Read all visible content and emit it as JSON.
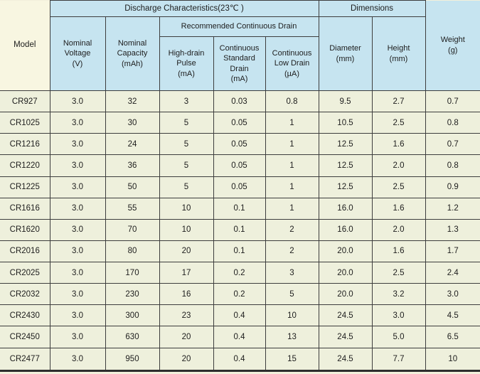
{
  "colors": {
    "header_blue": "#c6e4f0",
    "model_cream": "#f8f6e1",
    "cell_green": "#eef0dc",
    "border": "#3d3d3d",
    "text": "#1d1d1d",
    "page_bg": "#f2efdb"
  },
  "table": {
    "model_header": "Model",
    "groups": {
      "discharge": "Discharge Characteristics(23℃ )",
      "dimensions": "Dimensions",
      "recommended": "Recommended Continuous Drain"
    },
    "columns": {
      "nominal_voltage": "Nominal\nVoltage\n(V)",
      "nominal_capacity": "Nominal\nCapacity\n(mAh)",
      "high_drain_pulse": "High-drain\nPulse\n(mA)",
      "continuous_standard_drain": "Continuous\nStandard\nDrain\n(mA)",
      "continuous_low_drain": "Continuous\nLow Drain\n(µA)",
      "diameter": "Diameter\n(mm)",
      "height": "Height\n(mm)",
      "weight": "Weight\n(g)"
    },
    "rows": [
      [
        "CR927",
        "3.0",
        "32",
        "3",
        "0.03",
        "0.8",
        "9.5",
        "2.7",
        "0.7"
      ],
      [
        "CR1025",
        "3.0",
        "30",
        "5",
        "0.05",
        "1",
        "10.5",
        "2.5",
        "0.8"
      ],
      [
        "CR1216",
        "3.0",
        "24",
        "5",
        "0.05",
        "1",
        "12.5",
        "1.6",
        "0.7"
      ],
      [
        "CR1220",
        "3.0",
        "36",
        "5",
        "0.05",
        "1",
        "12.5",
        "2.0",
        "0.8"
      ],
      [
        "CR1225",
        "3.0",
        "50",
        "5",
        "0.05",
        "1",
        "12.5",
        "2.5",
        "0.9"
      ],
      [
        "CR1616",
        "3.0",
        "55",
        "10",
        "0.1",
        "1",
        "16.0",
        "1.6",
        "1.2"
      ],
      [
        "CR1620",
        "3.0",
        "70",
        "10",
        "0.1",
        "2",
        "16.0",
        "2.0",
        "1.3"
      ],
      [
        "CR2016",
        "3.0",
        "80",
        "20",
        "0.1",
        "2",
        "20.0",
        "1.6",
        "1.7"
      ],
      [
        "CR2025",
        "3.0",
        "170",
        "17",
        "0.2",
        "3",
        "20.0",
        "2.5",
        "2.4"
      ],
      [
        "CR2032",
        "3.0",
        "230",
        "16",
        "0.2",
        "5",
        "20.0",
        "3.2",
        "3.0"
      ],
      [
        "CR2430",
        "3.0",
        "300",
        "23",
        "0.4",
        "10",
        "24.5",
        "3.0",
        "4.5"
      ],
      [
        "CR2450",
        "3.0",
        "630",
        "20",
        "0.4",
        "13",
        "24.5",
        "5.0",
        "6.5"
      ],
      [
        "CR2477",
        "3.0",
        "950",
        "20",
        "0.4",
        "15",
        "24.5",
        "7.7",
        "10"
      ]
    ]
  }
}
